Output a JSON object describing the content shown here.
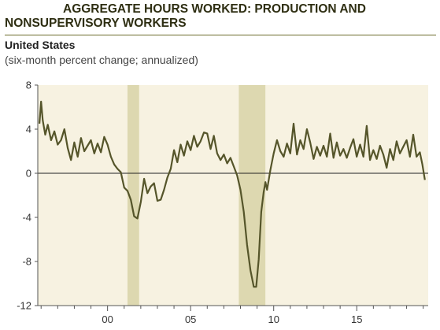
{
  "header": {
    "title_line1": "AGGREGATE HOURS WORKED: PRODUCTION AND",
    "title_line2": "NONSUPERVISORY WORKERS",
    "subtitle": "United States",
    "units": "(six-month percent change; annualized)"
  },
  "colors": {
    "line": "#55552a",
    "plot_bg": "#f7f2e1",
    "recession": "#ddd8b0",
    "zero_line": "#222222",
    "rule": "#6b6b2a"
  },
  "chart_data": {
    "type": "line",
    "title": "AGGREGATE HOURS WORKED: PRODUCTION AND NONSUPERVISORY WORKERS",
    "subtitle": "United States",
    "ylabel": "(six-month percent change; annualized)",
    "xlim": [
      1995.8,
      2019.3
    ],
    "ylim": [
      -12,
      8
    ],
    "yticks": [
      8,
      4,
      0,
      -4,
      -8,
      -12
    ],
    "xtick_labels": [
      {
        "year": 2000,
        "label": "00"
      },
      {
        "year": 2005,
        "label": "05"
      },
      {
        "year": 2010,
        "label": "10"
      },
      {
        "year": 2015,
        "label": "15"
      }
    ],
    "minor_xticks": [
      1996,
      1997,
      1998,
      1999,
      2001,
      2002,
      2003,
      2004,
      2006,
      2007,
      2008,
      2009,
      2011,
      2012,
      2013,
      2014,
      2016,
      2017,
      2018,
      2019
    ],
    "recessions": [
      [
        2001.2,
        2001.9
      ],
      [
        2007.9,
        2009.5
      ]
    ],
    "reference_line": 0,
    "grid": false,
    "series": [
      {
        "x": [
          1995.9,
          1996.0,
          1996.1,
          1996.25,
          1996.4,
          1996.6,
          1996.8,
          1997.0,
          1997.2,
          1997.4,
          1997.6,
          1997.8,
          1998.0,
          1998.2,
          1998.4,
          1998.6,
          1998.8,
          1999.0,
          1999.2,
          1999.4,
          1999.6,
          1999.8,
          2000.0,
          2000.2,
          2000.4,
          2000.6,
          2000.8,
          2001.0,
          2001.2,
          2001.4,
          2001.6,
          2001.8,
          2002.0,
          2002.2,
          2002.4,
          2002.6,
          2002.8,
          2003.0,
          2003.2,
          2003.4,
          2003.6,
          2003.8,
          2004.0,
          2004.2,
          2004.4,
          2004.6,
          2004.8,
          2005.0,
          2005.2,
          2005.4,
          2005.6,
          2005.8,
          2006.0,
          2006.2,
          2006.4,
          2006.6,
          2006.8,
          2007.0,
          2007.2,
          2007.4,
          2007.6,
          2007.8,
          2008.0,
          2008.2,
          2008.4,
          2008.6,
          2008.8,
          2008.95,
          2009.1,
          2009.25,
          2009.4,
          2009.5,
          2009.6,
          2009.8,
          2010.0,
          2010.2,
          2010.4,
          2010.6,
          2010.8,
          2011.0,
          2011.2,
          2011.4,
          2011.6,
          2011.8,
          2012.0,
          2012.2,
          2012.4,
          2012.6,
          2012.8,
          2013.0,
          2013.2,
          2013.4,
          2013.6,
          2013.8,
          2014.0,
          2014.2,
          2014.4,
          2014.6,
          2014.8,
          2015.0,
          2015.2,
          2015.4,
          2015.6,
          2015.8,
          2016.0,
          2016.2,
          2016.4,
          2016.6,
          2016.8,
          2017.0,
          2017.2,
          2017.4,
          2017.6,
          2017.8,
          2018.0,
          2018.2,
          2018.4,
          2018.6,
          2018.8,
          2018.95,
          2019.1
        ],
        "y": [
          4.5,
          6.5,
          4.8,
          3.5,
          4.4,
          3.0,
          3.8,
          2.6,
          3.0,
          4.0,
          2.3,
          1.2,
          2.8,
          1.5,
          3.2,
          2.0,
          2.5,
          3.0,
          1.8,
          2.7,
          1.9,
          3.3,
          2.6,
          1.5,
          0.8,
          0.4,
          0.1,
          -1.3,
          -1.6,
          -2.4,
          -3.9,
          -4.1,
          -2.6,
          -0.5,
          -1.8,
          -1.2,
          -0.9,
          -2.5,
          -2.4,
          -1.5,
          -0.4,
          0.4,
          2.1,
          1.0,
          2.6,
          1.6,
          2.9,
          2.1,
          3.4,
          2.4,
          2.9,
          3.7,
          3.6,
          2.2,
          3.4,
          1.8,
          1.2,
          1.7,
          0.9,
          1.4,
          0.6,
          -0.2,
          -1.5,
          -3.5,
          -6.5,
          -8.8,
          -10.3,
          -10.3,
          -7.8,
          -3.5,
          -1.7,
          -0.8,
          -1.5,
          0.3,
          1.8,
          3.0,
          2.0,
          1.5,
          2.7,
          1.8,
          4.5,
          1.7,
          3.0,
          2.2,
          4.0,
          2.8,
          1.3,
          2.4,
          1.6,
          2.5,
          1.5,
          3.6,
          1.4,
          2.8,
          1.6,
          2.2,
          1.4,
          2.3,
          3.1,
          1.5,
          2.6,
          1.5,
          4.3,
          1.2,
          2.1,
          1.3,
          2.5,
          1.7,
          0.5,
          2.2,
          1.2,
          2.9,
          1.8,
          2.4,
          3.0,
          1.5,
          3.5,
          1.5,
          1.9,
          0.8,
          -0.6
        ]
      }
    ]
  }
}
